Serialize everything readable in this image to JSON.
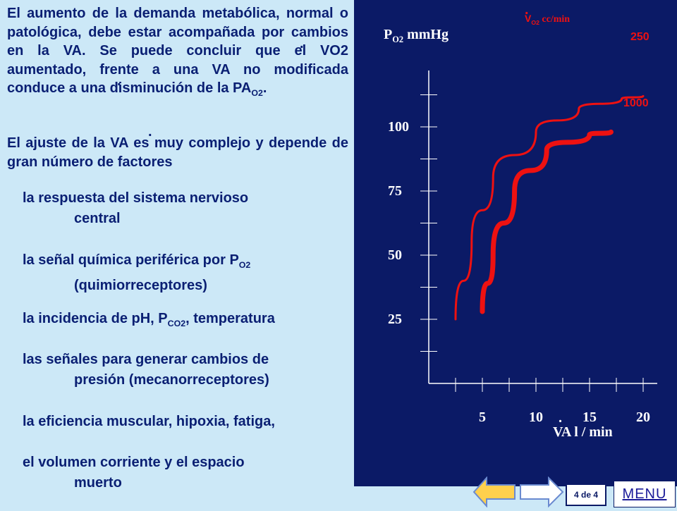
{
  "text": {
    "paragraph1": "El aumento de la demanda metabólica, normal o patológica, debe estar acompañada por cambios en la VA. Se puede concluir que el VO2 aumentado, frente a una VA no modificada conduce a una disminución de la PA",
    "paragraph1_sub": "O2",
    "paragraph1_end": ".",
    "paragraph2": "El ajuste de la VA es muy complejo y depende de gran número de factores",
    "dot": "."
  },
  "bullets": [
    {
      "marker": "",
      "line1": "la respuesta del sistema nervioso",
      "line2": "central"
    },
    {
      "marker": "",
      "line1": "la señal química periférica por P",
      "sub": "O2",
      "line2": "(quimiorreceptores)"
    },
    {
      "marker": "",
      "line1": "la incidencia de pH, P",
      "sub": "CO2",
      "line1_after": ", temperatura",
      "line2": ""
    },
    {
      "marker": "",
      "line1": "las señales para generar cambios de",
      "line2": "presión (mecanorreceptores)"
    },
    {
      "marker": "",
      "line1": "la eficiencia muscular, hipoxia, fatiga,",
      "line2": ""
    },
    {
      "marker": "",
      "line1": "el volumen corriente y el espacio",
      "line2": "muerto"
    }
  ],
  "chart_data": {
    "type": "line",
    "ylabel_main": "P",
    "ylabel_sub": "O2",
    "ylabel_unit": "mmHg",
    "xlabel": "VA l / min",
    "legend_title_main": "V",
    "legend_title_sub": "O2",
    "legend_title_unit": "cc/min",
    "y_ticks": [
      "25",
      "50",
      "75",
      "100"
    ],
    "x_ticks": [
      "5",
      "10",
      "15",
      "20"
    ],
    "series": [
      {
        "name": "250",
        "color": "#ee1111",
        "points": [
          [
            2.5,
            25
          ],
          [
            4,
            55
          ],
          [
            6,
            80
          ],
          [
            10,
            98
          ],
          [
            14,
            107
          ],
          [
            18,
            111
          ],
          [
            20,
            112
          ]
        ]
      },
      {
        "name": "1000",
        "color": "#ee1111",
        "points": [
          [
            5,
            28
          ],
          [
            6,
            50
          ],
          [
            8,
            75
          ],
          [
            11,
            91
          ],
          [
            15,
            97
          ],
          [
            17,
            98
          ]
        ]
      }
    ]
  },
  "nav": {
    "page_indicator": "4 de 4",
    "menu": "MENU"
  }
}
